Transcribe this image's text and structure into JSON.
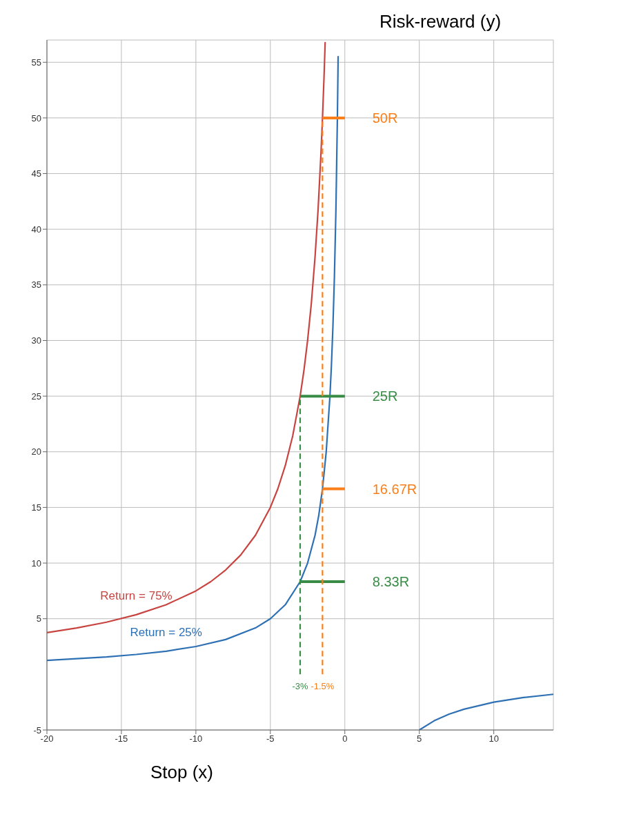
{
  "chart_data": {
    "type": "line",
    "xlabel": "Stop (x)",
    "ylabel": "Risk-reward (y)",
    "xlim": [
      -20,
      14
    ],
    "ylim": [
      -5,
      57
    ],
    "xticks": [
      -20,
      -15,
      -10,
      -5,
      0,
      5,
      10
    ],
    "yticks": [
      -5,
      5,
      10,
      15,
      20,
      25,
      30,
      35,
      40,
      45,
      50,
      55
    ],
    "grid": true,
    "marker": "none",
    "legend": false,
    "series": [
      {
        "name": "Return = 75%",
        "color": "#c74440",
        "x": [
          -20,
          -18,
          -16,
          -14,
          -12,
          -10,
          -9,
          -8,
          -7,
          -6,
          -5,
          -4.5,
          -4,
          -3.5,
          -3,
          -2.75,
          -2.5,
          -2.25,
          -2,
          -1.8,
          -1.6,
          -1.5,
          -1.4,
          -1.32
        ],
        "values": [
          3.75,
          4.17,
          4.69,
          5.36,
          6.25,
          7.5,
          8.33,
          9.38,
          10.71,
          12.5,
          15,
          16.67,
          18.75,
          21.43,
          25,
          27.27,
          30,
          33.33,
          37.5,
          41.67,
          46.88,
          50,
          53.57,
          56.82
        ]
      },
      {
        "name": "Return = 25%",
        "color": "#2d70b3",
        "x": [
          -20,
          -16,
          -14,
          -12,
          -10,
          -8,
          -6,
          -5,
          -4,
          -3,
          -2.5,
          -2,
          -1.75,
          -1.5,
          -1.25,
          -1,
          -0.9,
          -0.8,
          -0.7,
          -0.6,
          -0.5,
          -0.45,
          0,
          5,
          6,
          7,
          8,
          10,
          12,
          14
        ],
        "values": [
          1.25,
          1.56,
          1.79,
          2.08,
          2.5,
          3.13,
          4.17,
          5,
          6.25,
          8.33,
          10,
          12.5,
          14.29,
          16.67,
          20,
          25,
          27.78,
          31.25,
          35.71,
          41.67,
          50,
          55.56,
          null,
          -5,
          -4.17,
          -3.57,
          -3.13,
          -2.5,
          -2.08,
          -1.79
        ]
      },
      {
        "color": "#fa7e19",
        "x": [
          -1.5,
          0
        ],
        "values": [
          50,
          50
        ]
      },
      {
        "color": "#fa7e19",
        "x": [
          -1.5,
          0
        ],
        "values": [
          16.67,
          16.67
        ]
      },
      {
        "color": "#388c46",
        "x": [
          -3,
          0
        ],
        "values": [
          25,
          25
        ]
      },
      {
        "color": "#388c46",
        "x": [
          -3,
          0
        ],
        "values": [
          8.33,
          8.33
        ]
      },
      {
        "color": "#388c46",
        "line_style": "dashed",
        "x": [
          -3,
          -3
        ],
        "values": [
          0,
          25
        ]
      },
      {
        "color": "#fa7e19",
        "line_style": "dashed",
        "x": [
          -1.5,
          -1.5
        ],
        "values": [
          0,
          50
        ]
      }
    ],
    "annotations": [
      {
        "text": "50R",
        "x": 0,
        "y": 50
      },
      {
        "text": "25R",
        "x": 0,
        "y": 25
      },
      {
        "text": "16.67R",
        "x": 0,
        "y": 16.67
      },
      {
        "text": "8.33R",
        "x": 0,
        "y": 8.33
      },
      {
        "text": "-3%",
        "x": -3,
        "y": 0
      },
      {
        "text": "-1.5%",
        "x": -1.5,
        "y": 0
      }
    ]
  }
}
